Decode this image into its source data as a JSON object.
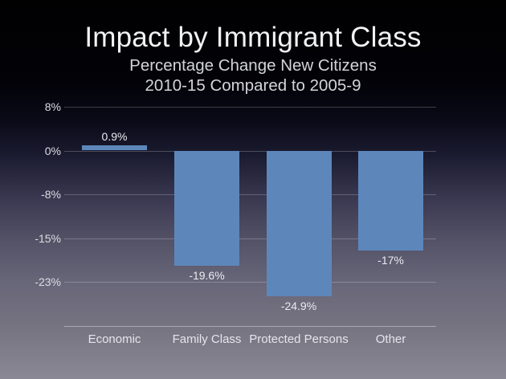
{
  "slide": {
    "title": "Impact by Immigrant Class",
    "subtitle_line1": "Percentage Change New Citizens",
    "subtitle_line2": "2010-15 Compared to 2005-9"
  },
  "chart_data": {
    "type": "bar",
    "title": "Impact by Immigrant Class",
    "subtitle": "Percentage Change New Citizens 2010-15 Compared to 2005-9",
    "categories": [
      "Economic",
      "Family Class",
      "Protected Persons",
      "Other"
    ],
    "values": [
      0.9,
      -19.6,
      -24.9,
      -17
    ],
    "value_labels": [
      "0.9%",
      "-19.6%",
      "-24.9%",
      "-17%"
    ],
    "xlabel": "",
    "ylabel": "",
    "ytick_labels": [
      "8%",
      "0%",
      "-8%",
      "-15%",
      "-23%"
    ],
    "ylim": [
      -31,
      8
    ],
    "grid": true,
    "legend": false,
    "bar_color": "#5d87bb"
  },
  "colors": {
    "bar": "#5d87bb",
    "title_text": "#f1f2f4",
    "subtitle_text": "#d3d4da",
    "axis_text": "#dddde4",
    "gridline": "rgba(255,255,255,0.22)",
    "background_top": "#010102",
    "background_bottom": "#8a8894"
  }
}
